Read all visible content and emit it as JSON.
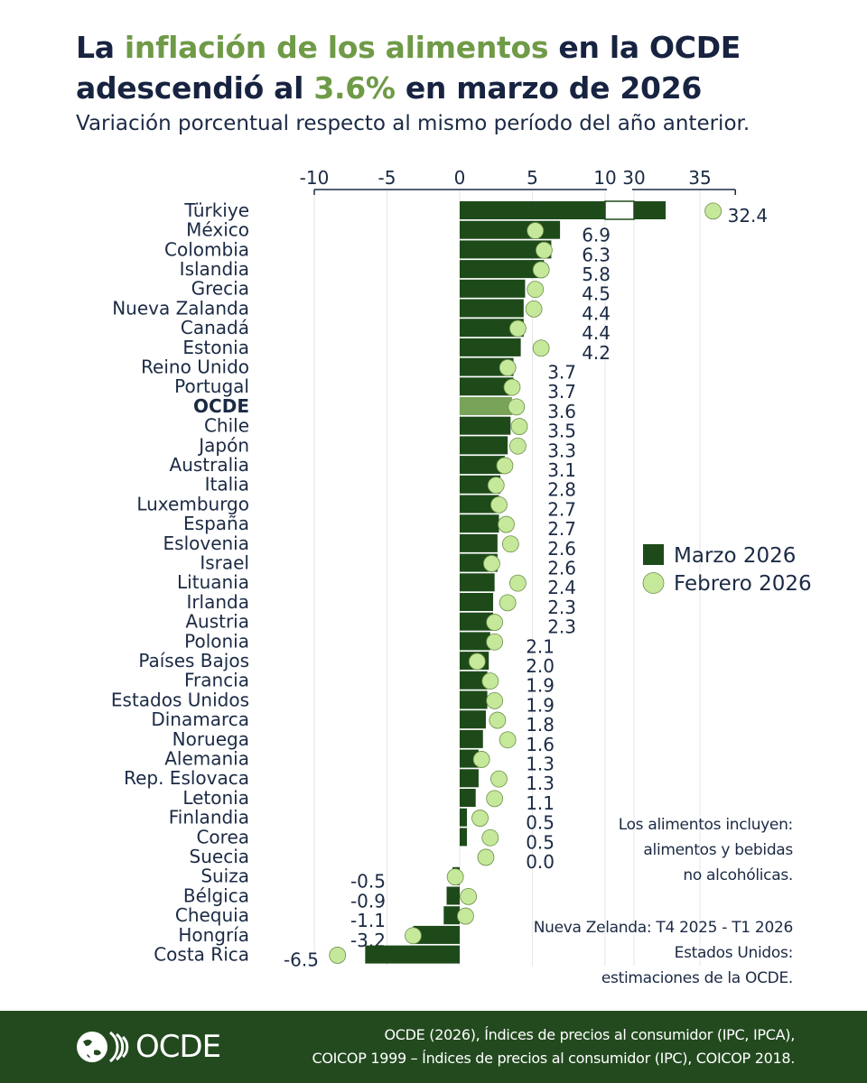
{
  "title": {
    "part1": "La ",
    "highlight1": "inflación de los alimentos",
    "part2": " en la OCDE",
    "part3": "adescendió al ",
    "highlight2": "3.6%",
    "part4": " en marzo de 2026"
  },
  "subtitle": "Variación porcentual respecto al mismo período del año anterior.",
  "notes": {
    "foods_line1": "Los alimentos incluyen:",
    "foods_line2": "alimentos y bebidas",
    "foods_line3": "no alcohólicas.",
    "nz": "Nueva Zelanda: T4 2025 - T1 2026",
    "us_line1": "Estados Unidos:",
    "us_line2": "estimaciones de la OCDE."
  },
  "footer": {
    "logo_text": "OCDE",
    "source_line1": "OCDE (2026), Índices de precios al consumidor (IPC, IPCA),",
    "source_line2": "COICOP 1999 – Índices de precios al consumidor (IPC), COICOP 2018."
  },
  "colors": {
    "march_bar": "#1e4a1a",
    "oecd_bar": "#7aa35a",
    "february_dot": "#c6e89a",
    "title_highlight": "#6f9a47",
    "text": "#1b2a44",
    "footer_bg": "#234a1f"
  },
  "chart_data": {
    "type": "bar",
    "orientation": "horizontal",
    "title": "",
    "xlabel": "",
    "ylabel": "",
    "axis_position": "top",
    "x_ticks": [
      "-10",
      "-5",
      "0",
      "5",
      "10",
      "30",
      "35"
    ],
    "x_broken_axis": {
      "segment1": [
        -10,
        10
      ],
      "segment2": [
        30,
        37
      ]
    },
    "grid": true,
    "legend_position": "right",
    "legend": [
      {
        "label": "Marzo 2026",
        "marker": "square"
      },
      {
        "label": "Febrero 2026",
        "marker": "circle"
      }
    ],
    "highlight_category": "OCDE",
    "categories": [
      "Türkiye",
      "México",
      "Colombia",
      "Islandia",
      "Grecia",
      "Nueva Zalanda",
      "Canadá",
      "Estonia",
      "Reino Unido",
      "Portugal",
      "OCDE",
      "Chile",
      "Japón",
      "Australia",
      "Italia",
      "Luxemburgo",
      "España",
      "Eslovenia",
      "Israel",
      "Lituania",
      "Irlanda",
      "Austria",
      "Polonia",
      "Países Bajos",
      "Francia",
      "Estados Unidos",
      "Dinamarca",
      "Noruega",
      "Alemania",
      "Rep. Eslovaca",
      "Letonia",
      "Finlandia",
      "Corea",
      "Suecia",
      "Suiza",
      "Bélgica",
      "Chequia",
      "Hongría",
      "Costa Rica"
    ],
    "series": [
      {
        "name": "Marzo 2026",
        "values": [
          32.4,
          6.9,
          6.3,
          5.8,
          4.5,
          4.4,
          4.4,
          4.2,
          3.7,
          3.7,
          3.6,
          3.5,
          3.3,
          3.1,
          2.8,
          2.7,
          2.7,
          2.6,
          2.6,
          2.4,
          2.3,
          2.3,
          2.1,
          2.0,
          1.9,
          1.9,
          1.8,
          1.6,
          1.3,
          1.3,
          1.1,
          0.5,
          0.5,
          0.0,
          -0.5,
          -0.9,
          -1.1,
          -3.2,
          -6.5
        ],
        "labels": [
          "32.4",
          "6.9",
          "6.3",
          "5.8",
          "4.5",
          "4.4",
          "4.4",
          "4.2",
          "3.7",
          "3.7",
          "3.6",
          "3.5",
          "3.3",
          "3.1",
          "2.8",
          "2.7",
          "2.7",
          "2.6",
          "2.6",
          "2.4",
          "2.3",
          "2.3",
          "2.1",
          "2.0",
          "1.9",
          "1.9",
          "1.8",
          "1.6",
          "1.3",
          "1.3",
          "1.1",
          "0.5",
          "0.5",
          "0.0",
          "-0.5",
          "-0.9",
          "-1.1",
          "-3.2",
          "-6.5"
        ]
      },
      {
        "name": "Febrero 2026",
        "values": [
          36.0,
          5.2,
          5.8,
          5.6,
          5.2,
          5.1,
          4.0,
          5.6,
          3.3,
          3.6,
          3.9,
          4.1,
          4.0,
          3.1,
          2.5,
          2.7,
          3.2,
          3.5,
          2.2,
          4.0,
          3.3,
          2.4,
          2.4,
          1.2,
          2.1,
          2.4,
          2.6,
          3.3,
          1.5,
          2.7,
          2.4,
          1.4,
          2.1,
          1.8,
          -0.3,
          0.6,
          0.4,
          -3.2,
          -8.4
        ]
      }
    ]
  }
}
